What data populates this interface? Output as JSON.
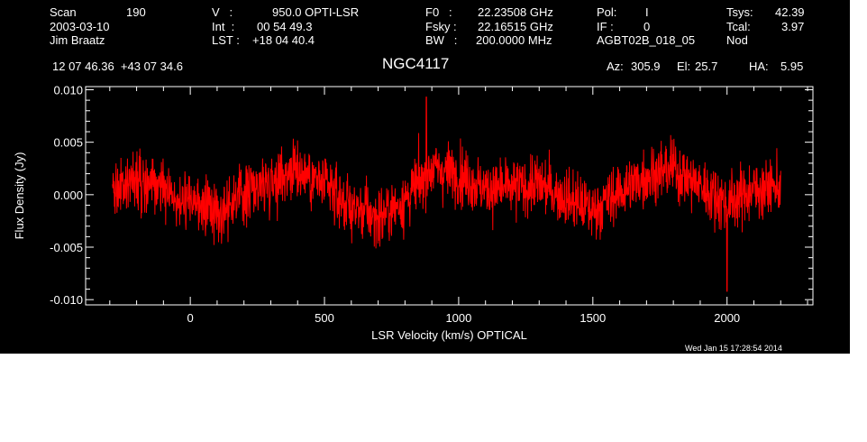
{
  "header": {
    "scan_label": "Scan",
    "scan_value": "190",
    "date": "2003-03-10",
    "observer": "Jim Braatz",
    "v_label": "V   :",
    "v_value": "950.0 OPTI-LSR",
    "int_label": "Int  :",
    "int_value": "00 54 49.3",
    "lst_label": "LST :",
    "lst_value": "+18 04 40.4",
    "f0_label": "F0   :",
    "f0_value": "22.23508 GHz",
    "fsky_label": "Fsky :",
    "fsky_value": "22.16515 GHz",
    "bw_label": "BW   :",
    "bw_value": "200.0000 MHz",
    "pol_label": "Pol:",
    "pol_value": "I",
    "if_label": "IF :",
    "if_value": "0",
    "project": "AGBT02B_018_05",
    "tsys_label": "Tsys:",
    "tsys_value": "42.39",
    "tcal_label": "Tcal:",
    "tcal_value": "3.97",
    "nod": "Nod",
    "coords": "12 07 46.36  +43 07 34.6",
    "source": "NGC4117",
    "az_label": "Az:",
    "az_value": "305.9",
    "el_label": "El:",
    "el_value": "25.7",
    "ha_label": "HA:",
    "ha_value": "5.95",
    "timestamp": "Wed Jan 15 17:28:54 2014"
  },
  "chart_data": {
    "type": "line",
    "xlabel": "LSR Velocity (km/s) OPTICAL",
    "ylabel": "Flux Density (Jy)",
    "xlim": [
      -390,
      2320
    ],
    "ylim": [
      -0.0105,
      0.0103
    ],
    "x_ticks": [
      0,
      500,
      1000,
      1500,
      2000
    ],
    "x_tick_labels": [
      "0",
      "500",
      "1000",
      "1500",
      "2000"
    ],
    "y_ticks": [
      -0.01,
      -0.005,
      0.0,
      0.005,
      0.01
    ],
    "y_tick_labels": [
      "-0.010",
      "-0.005",
      "0.000",
      "0.005",
      "0.010"
    ],
    "series_color": "#ff0000",
    "x_start": -290,
    "x_end": 2200,
    "baseline": {
      "x": [
        -290,
        -200,
        -100,
        0,
        100,
        200,
        300,
        400,
        500,
        600,
        700,
        800,
        900,
        1000,
        1100,
        1200,
        1300,
        1400,
        1500,
        1600,
        1700,
        1800,
        1900,
        2000,
        2100,
        2200
      ],
      "y": [
        0.0005,
        0.0015,
        0.0005,
        -0.0008,
        -0.0015,
        0.0002,
        0.0015,
        0.0025,
        0.0008,
        -0.0012,
        -0.0022,
        -0.0005,
        0.0025,
        0.002,
        0.0005,
        0.0006,
        0.001,
        -0.0003,
        -0.0015,
        0.0003,
        0.0018,
        0.0025,
        0.0008,
        -0.0008,
        0.0005,
        0.0008
      ]
    },
    "noise_rms": 0.0025,
    "peak": {
      "x": 880,
      "y": 0.0093
    },
    "trough": {
      "x": 2000,
      "y": -0.0092
    }
  }
}
